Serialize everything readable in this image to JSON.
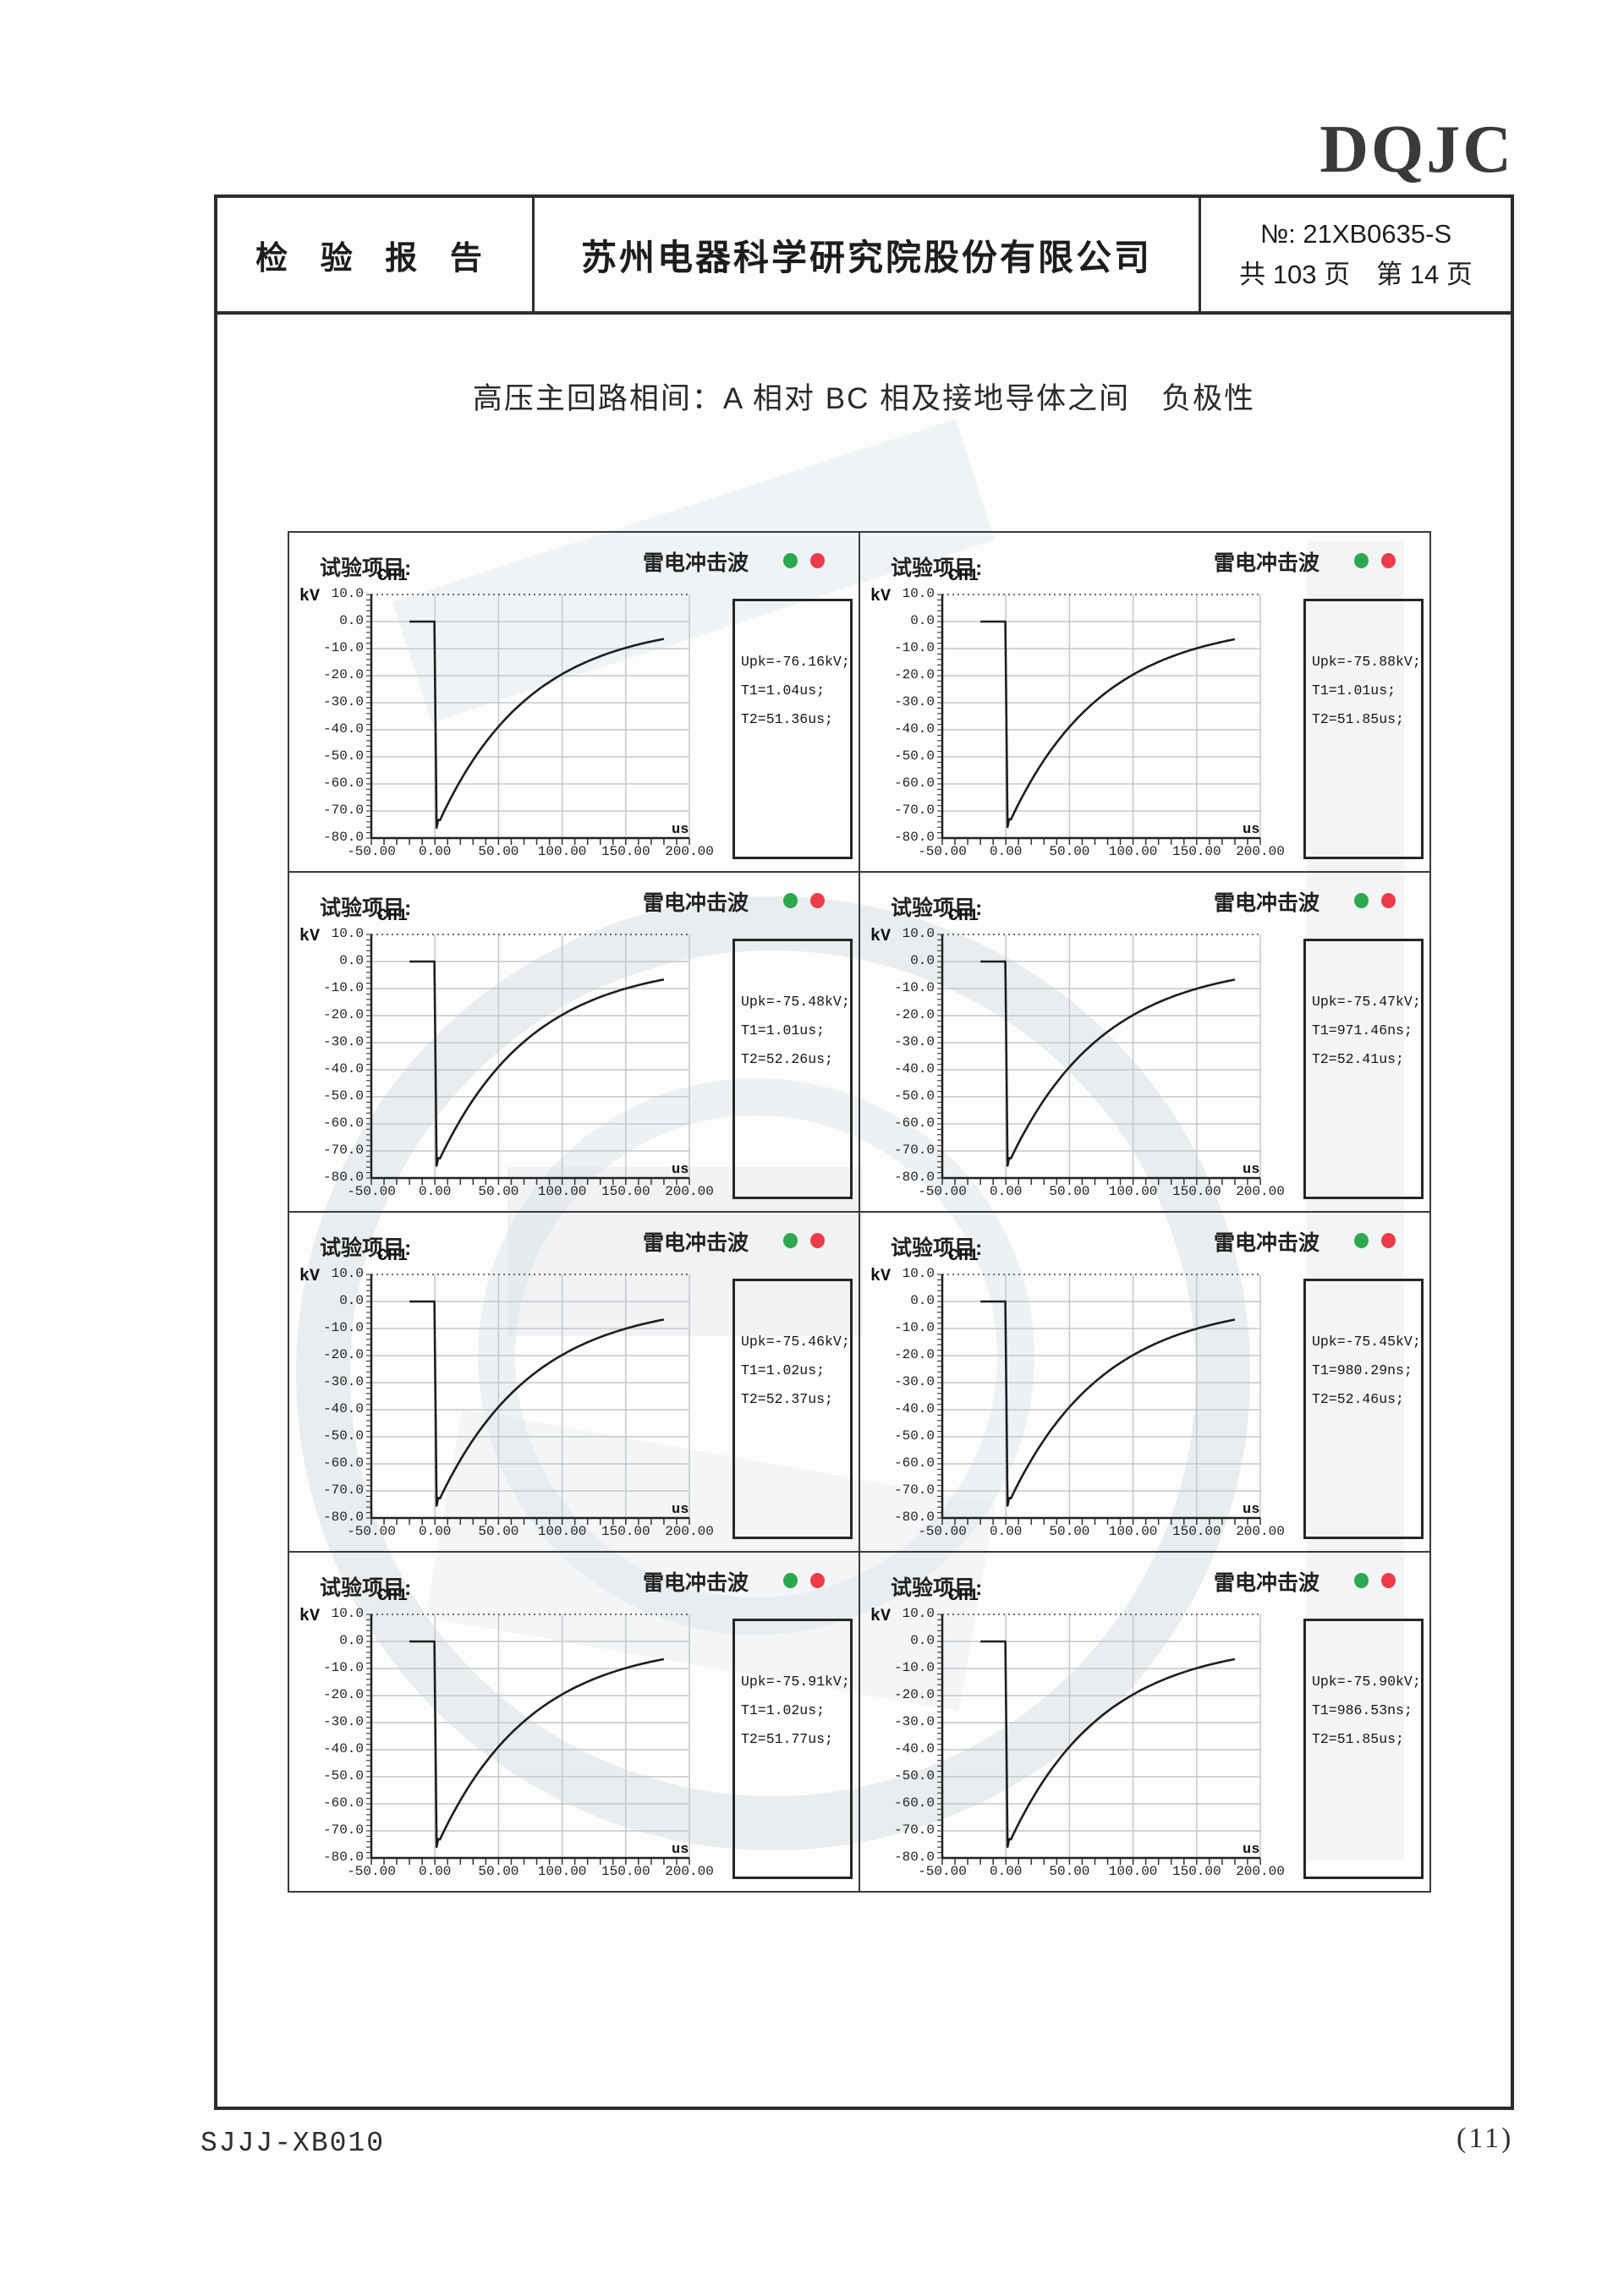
{
  "page": {
    "logo": "DQJC",
    "footer_left": "SJJJ-XB010",
    "footer_right": "(11)"
  },
  "header": {
    "report_title": "检 验 报 告",
    "company": "苏州电器科学研究院股份有限公司",
    "report_no": "№: 21XB0635-S",
    "page_info": "共 103 页　第 14 页"
  },
  "section_title": "高压主回路相间：A 相对 BC 相及接地导体之间　负极性",
  "chart_common": {
    "test_item_label": "试验项目:",
    "wave_title": "雷电冲击波",
    "channel": "CH1",
    "y_unit": "kV",
    "x_unit": "us",
    "y_ticks": [
      "10.0",
      "0.0",
      "-10.0",
      "-20.0",
      "-30.0",
      "-40.0",
      "-50.0",
      "-60.0",
      "-70.0",
      "-80.0"
    ],
    "x_ticks": [
      "-50.00",
      "0.00",
      "50.00",
      "100.00",
      "150.00",
      "200.00"
    ],
    "status_dots": [
      "green",
      "red"
    ],
    "colors": {
      "dot_green": "#2ca94e",
      "dot_red": "#ee3b49",
      "grid": "#c3c8cc",
      "trace": "#1e1e1e"
    }
  },
  "chart_data": [
    {
      "type": "line",
      "title": "雷电冲击波",
      "channel": "CH1",
      "x_unit": "us",
      "y_unit": "kV",
      "x_range": [
        -50,
        200
      ],
      "y_range": [
        -80,
        10
      ],
      "upk_label": "Upk=-76.16kV;",
      "t1_label": "T1=1.04us;",
      "t2_label": "T2=51.36us;",
      "upk_kv": -76.16,
      "t1_us": 1.04,
      "t2_us": 51.36
    },
    {
      "type": "line",
      "title": "雷电冲击波",
      "channel": "CH1",
      "x_unit": "us",
      "y_unit": "kV",
      "x_range": [
        -50,
        200
      ],
      "y_range": [
        -80,
        10
      ],
      "upk_label": "Upk=-75.88kV;",
      "t1_label": "T1=1.01us;",
      "t2_label": "T2=51.85us;",
      "upk_kv": -75.88,
      "t1_us": 1.01,
      "t2_us": 51.85
    },
    {
      "type": "line",
      "title": "雷电冲击波",
      "channel": "CH1",
      "x_unit": "us",
      "y_unit": "kV",
      "x_range": [
        -50,
        200
      ],
      "y_range": [
        -80,
        10
      ],
      "upk_label": "Upk=-75.48kV;",
      "t1_label": "T1=1.01us;",
      "t2_label": "T2=52.26us;",
      "upk_kv": -75.48,
      "t1_us": 1.01,
      "t2_us": 52.26
    },
    {
      "type": "line",
      "title": "雷电冲击波",
      "channel": "CH1",
      "x_unit": "us",
      "y_unit": "kV",
      "x_range": [
        -50,
        200
      ],
      "y_range": [
        -80,
        10
      ],
      "upk_label": "Upk=-75.47kV;",
      "t1_label": "T1=971.46ns;",
      "t2_label": "T2=52.41us;",
      "upk_kv": -75.47,
      "t1_us": 0.97146,
      "t2_us": 52.41
    },
    {
      "type": "line",
      "title": "雷电冲击波",
      "channel": "CH1",
      "x_unit": "us",
      "y_unit": "kV",
      "x_range": [
        -50,
        200
      ],
      "y_range": [
        -80,
        10
      ],
      "upk_label": "Upk=-75.46kV;",
      "t1_label": "T1=1.02us;",
      "t2_label": "T2=52.37us;",
      "upk_kv": -75.46,
      "t1_us": 1.02,
      "t2_us": 52.37
    },
    {
      "type": "line",
      "title": "雷电冲击波",
      "channel": "CH1",
      "x_unit": "us",
      "y_unit": "kV",
      "x_range": [
        -50,
        200
      ],
      "y_range": [
        -80,
        10
      ],
      "upk_label": "Upk=-75.45kV;",
      "t1_label": "T1=980.29ns;",
      "t2_label": "T2=52.46us;",
      "upk_kv": -75.45,
      "t1_us": 0.98029,
      "t2_us": 52.46
    },
    {
      "type": "line",
      "title": "雷电冲击波",
      "channel": "CH1",
      "x_unit": "us",
      "y_unit": "kV",
      "x_range": [
        -50,
        200
      ],
      "y_range": [
        -80,
        10
      ],
      "upk_label": "Upk=-75.91kV;",
      "t1_label": "T1=1.02us;",
      "t2_label": "T2=51.77us;",
      "upk_kv": -75.91,
      "t1_us": 1.02,
      "t2_us": 51.77
    },
    {
      "type": "line",
      "title": "雷电冲击波",
      "channel": "CH1",
      "x_unit": "us",
      "y_unit": "kV",
      "x_range": [
        -50,
        200
      ],
      "y_range": [
        -80,
        10
      ],
      "upk_label": "Upk=-75.90kV;",
      "t1_label": "T1=986.53ns;",
      "t2_label": "T2=51.85us;",
      "upk_kv": -75.9,
      "t1_us": 0.98653,
      "t2_us": 51.85
    }
  ]
}
